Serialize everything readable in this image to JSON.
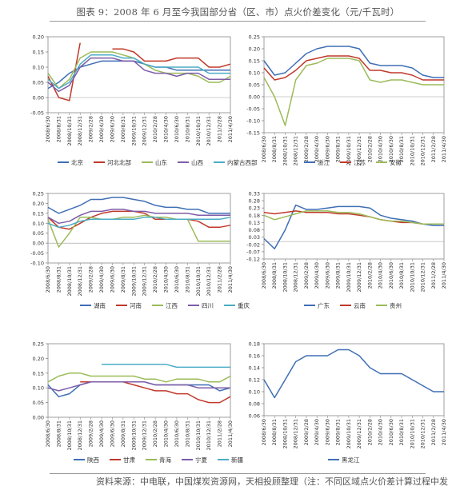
{
  "page": {
    "title": "图表 9：2008 年 6 月至今我国部分省（区、市）点火价差变化（元/千瓦时）",
    "source": "资料来源：中电联，中国煤炭资源网，天相投顾整理（注：不同区域点火价差计算过程中发电用煤耗热差异，以全国平均水平计算，计算过程采用区域接内用煤热值与标"
  },
  "chart_data": [
    {
      "type": "line",
      "x_labels": [
        "2008/6/30",
        "2008/8/31",
        "2008/10/31",
        "2008/12/31",
        "2009/2/28",
        "2009/4/30",
        "2009/6/30",
        "2009/8/31",
        "2009/10/31",
        "2009/12/31",
        "2010/2/28",
        "2010/4/30",
        "2010/6/30",
        "2010/8/31",
        "2010/10/31",
        "2010/12/31",
        "2011/2/28",
        "2011/4/30"
      ],
      "y_ticks": [
        "0.20",
        "0.15",
        "0.10",
        "0.05",
        "0.00",
        "-0.05"
      ],
      "ylim": [
        -0.05,
        0.2
      ],
      "legend_position": "bottom",
      "series": [
        {
          "name": "北京",
          "color": "#3f6fb5",
          "values": [
            0.03,
            0.05,
            0.08,
            0.1,
            0.11,
            0.12,
            0.12,
            0.12,
            0.12,
            0.11,
            0.1,
            0.1,
            0.09,
            0.09,
            0.09,
            0.09,
            0.09,
            0.09
          ]
        },
        {
          "name": "河北北部",
          "color": "#c0392b",
          "values": [
            0.07,
            0.0,
            -0.01,
            0.18,
            null,
            null,
            0.16,
            0.16,
            0.15,
            0.12,
            0.12,
            0.12,
            0.13,
            0.13,
            0.13,
            0.1,
            0.1,
            0.11
          ]
        },
        {
          "name": "山东",
          "color": "#9bbb59",
          "values": [
            0.08,
            0.03,
            0.06,
            0.13,
            0.15,
            0.15,
            0.15,
            0.14,
            0.13,
            0.11,
            0.09,
            0.08,
            0.08,
            0.08,
            0.07,
            0.05,
            0.05,
            0.07
          ]
        },
        {
          "name": "山西",
          "color": "#7e5ca8",
          "values": [
            0.05,
            0.02,
            0.04,
            0.1,
            0.13,
            0.13,
            0.13,
            0.12,
            0.12,
            0.09,
            0.08,
            0.08,
            0.07,
            0.08,
            0.08,
            0.06,
            0.06,
            0.06
          ]
        },
        {
          "name": "内蒙古西部",
          "color": "#4bacc6",
          "values": [
            0.06,
            0.03,
            0.05,
            0.11,
            0.14,
            0.14,
            0.14,
            0.13,
            0.13,
            0.11,
            0.1,
            0.1,
            0.1,
            0.1,
            0.1,
            0.08,
            0.08,
            0.08
          ]
        }
      ]
    },
    {
      "type": "line",
      "x_labels": [
        "2008/6/30",
        "2008/8/31",
        "2008/10/31",
        "2008/12/31",
        "2009/2/28",
        "2009/4/30",
        "2009/6/30",
        "2009/8/31",
        "2009/10/31",
        "2009/12/31",
        "2010/2/28",
        "2010/4/30",
        "2010/6/30",
        "2010/8/31",
        "2010/10/31",
        "2010/12/31",
        "2011/2/28",
        "2011/4/30"
      ],
      "y_ticks": [
        "0.25",
        "0.20",
        "0.15",
        "0.10",
        "0.05",
        "0.00",
        "-0.05",
        "-0.10",
        "-0.15"
      ],
      "ylim": [
        -0.15,
        0.25
      ],
      "legend_position": "bottom",
      "series": [
        {
          "name": "浙江",
          "color": "#3f6fb5",
          "values": [
            0.15,
            0.09,
            0.1,
            0.14,
            0.18,
            0.2,
            0.21,
            0.21,
            0.21,
            0.2,
            0.14,
            0.13,
            0.13,
            0.13,
            0.12,
            0.09,
            0.08,
            0.08
          ]
        },
        {
          "name": "江苏",
          "color": "#c0392b",
          "values": [
            0.12,
            0.07,
            0.08,
            0.11,
            0.15,
            0.16,
            0.17,
            0.17,
            0.17,
            0.16,
            0.11,
            0.11,
            0.1,
            0.1,
            0.09,
            0.07,
            0.07,
            0.07
          ]
        },
        {
          "name": "安徽",
          "color": "#9bbb59",
          "values": [
            0.08,
            0.0,
            -0.12,
            0.07,
            0.13,
            0.14,
            0.16,
            0.16,
            0.16,
            0.15,
            0.07,
            0.06,
            0.07,
            0.07,
            0.06,
            0.05,
            0.05,
            0.05
          ]
        }
      ]
    },
    {
      "type": "line",
      "x_labels": [
        "2008/6/30",
        "2008/8/31",
        "2008/10/31",
        "2008/12/31",
        "2009/2/28",
        "2009/4/30",
        "2009/6/30",
        "2009/8/31",
        "2009/10/31",
        "2009/12/31",
        "2010/2/28",
        "2010/4/30",
        "2010/6/30",
        "2010/8/31",
        "2010/10/31",
        "2010/12/31",
        "2011/2/28",
        "2011/4/30"
      ],
      "y_ticks": [
        "0.25",
        "0.20",
        "0.15",
        "0.10",
        "0.05",
        "0.00",
        "-0.05",
        "-0.10"
      ],
      "ylim": [
        -0.1,
        0.25
      ],
      "legend_position": "bottom",
      "series": [
        {
          "name": "湖南",
          "color": "#3f6fb5",
          "values": [
            0.18,
            0.15,
            0.17,
            0.19,
            0.22,
            0.22,
            0.23,
            0.23,
            0.22,
            0.21,
            0.19,
            0.18,
            0.18,
            0.17,
            0.17,
            0.15,
            0.15,
            0.15
          ]
        },
        {
          "name": "河南",
          "color": "#c0392b",
          "values": [
            0.13,
            0.08,
            0.07,
            0.1,
            0.13,
            0.15,
            0.16,
            0.16,
            0.16,
            0.15,
            0.12,
            0.12,
            0.12,
            0.12,
            0.11,
            0.08,
            0.08,
            0.09
          ]
        },
        {
          "name": "江西",
          "color": "#9bbb59",
          "values": [
            0.12,
            -0.02,
            0.05,
            0.13,
            0.13,
            0.12,
            0.12,
            0.13,
            0.13,
            0.14,
            0.13,
            0.13,
            0.12,
            0.12,
            0.01,
            0.01,
            0.01,
            0.01
          ]
        },
        {
          "name": "四川",
          "color": "#7e5ca8",
          "values": [
            0.13,
            0.1,
            0.11,
            0.14,
            0.16,
            0.16,
            0.17,
            0.17,
            0.16,
            0.16,
            0.15,
            0.15,
            0.15,
            0.15,
            0.14,
            0.14,
            0.14,
            0.14
          ]
        },
        {
          "name": "重庆",
          "color": "#4bacc6",
          "values": [
            0.1,
            0.08,
            0.09,
            0.11,
            0.12,
            0.12,
            0.12,
            0.12,
            0.12,
            0.13,
            0.13,
            0.12,
            0.12,
            0.12,
            0.12,
            0.12,
            0.12,
            0.13
          ]
        }
      ]
    },
    {
      "type": "line",
      "x_labels": [
        "2008/6/30",
        "2008/8/31",
        "2008/10/31",
        "2008/12/31",
        "2009/2/28",
        "2009/4/30",
        "2009/6/30",
        "2009/8/31",
        "2009/10/31",
        "2009/12/31",
        "2010/2/28",
        "2010/4/30",
        "2010/6/30",
        "2010/8/31",
        "2010/10/31",
        "2010/12/31",
        "2011/2/28",
        "2011/4/30"
      ],
      "y_ticks": [
        "0.33",
        "0.28",
        "0.23",
        "0.18",
        "0.13",
        "0.08",
        "0.03",
        "-0.02",
        "-0.07",
        "-0.12"
      ],
      "ylim": [
        -0.12,
        0.33
      ],
      "legend_position": "bottom",
      "series": [
        {
          "name": "广东",
          "color": "#3f6fb5",
          "values": [
            0.02,
            -0.05,
            0.08,
            0.25,
            0.22,
            0.22,
            0.23,
            0.24,
            0.24,
            0.24,
            0.23,
            0.18,
            0.16,
            0.15,
            0.14,
            0.12,
            0.11,
            0.11
          ]
        },
        {
          "name": "云南",
          "color": "#c0392b",
          "values": [
            0.2,
            0.19,
            0.2,
            0.21,
            0.2,
            0.2,
            0.2,
            0.19,
            0.19,
            0.18,
            0.17,
            0.15,
            0.14,
            0.13,
            0.13,
            0.12,
            0.12,
            0.12
          ]
        },
        {
          "name": "贵州",
          "color": "#9bbb59",
          "values": [
            0.18,
            0.15,
            0.17,
            0.19,
            0.21,
            0.21,
            0.21,
            0.2,
            0.2,
            0.19,
            0.17,
            0.15,
            0.14,
            0.14,
            0.13,
            0.12,
            0.12,
            0.12
          ]
        }
      ]
    },
    {
      "type": "line",
      "x_labels": [
        "2008/6/30",
        "2008/8/31",
        "2008/10/31",
        "2008/12/31",
        "2009/2/28",
        "2009/4/30",
        "2009/6/30",
        "2009/8/31",
        "2009/10/31",
        "2009/12/31",
        "2010/2/28",
        "2010/4/30",
        "2010/6/30",
        "2010/8/31",
        "2010/10/31",
        "2010/12/31",
        "2011/2/28",
        "2011/4/30"
      ],
      "y_ticks": [
        "0.25",
        "0.20",
        "0.15",
        "0.10",
        "0.05",
        "0.00"
      ],
      "ylim": [
        0,
        0.25
      ],
      "legend_position": "bottom",
      "series": [
        {
          "name": "陕西",
          "color": "#3f6fb5",
          "values": [
            0.11,
            0.07,
            0.08,
            0.11,
            0.12,
            0.12,
            0.12,
            0.12,
            0.12,
            0.12,
            0.11,
            0.11,
            0.11,
            0.11,
            0.11,
            0.11,
            0.09,
            0.1
          ]
        },
        {
          "name": "甘肃",
          "color": "#c0392b",
          "values": [
            null,
            null,
            null,
            0.12,
            0.12,
            0.12,
            0.12,
            0.12,
            0.11,
            0.1,
            0.09,
            0.09,
            0.08,
            0.08,
            0.06,
            0.05,
            0.05,
            0.07
          ]
        },
        {
          "name": "青海",
          "color": "#9bbb59",
          "values": [
            0.12,
            0.14,
            0.15,
            0.15,
            0.14,
            0.14,
            0.14,
            0.14,
            0.14,
            0.13,
            0.13,
            0.12,
            0.13,
            0.13,
            0.13,
            0.12,
            0.12,
            0.14
          ]
        },
        {
          "name": "宁夏",
          "color": "#7e5ca8",
          "values": [
            0.1,
            0.09,
            0.1,
            0.11,
            0.12,
            0.12,
            0.12,
            0.12,
            0.12,
            0.12,
            0.11,
            0.11,
            0.11,
            0.11,
            0.1,
            0.1,
            0.1,
            0.1
          ]
        },
        {
          "name": "新疆",
          "color": "#4bacc6",
          "values": [
            null,
            null,
            null,
            null,
            null,
            0.18,
            0.18,
            0.18,
            0.18,
            0.18,
            0.18,
            0.18,
            0.17,
            0.17,
            0.17,
            0.17,
            0.17,
            0.17
          ]
        }
      ]
    },
    {
      "type": "line",
      "x_labels": [
        "2008/6/30",
        "2008/8/31",
        "2008/10/31",
        "2008/12/31",
        "2009/2/28",
        "2009/4/30",
        "2009/6/30",
        "2009/8/31",
        "2009/10/31",
        "2009/12/31",
        "2010/2/28",
        "2010/4/30",
        "2010/6/30",
        "2010/8/31",
        "2010/10/31",
        "2010/12/31",
        "2011/2/28",
        "2011/4/30"
      ],
      "y_ticks": [
        "0.18",
        "0.16",
        "0.14",
        "0.12",
        "0.10",
        "0.08",
        "0.06"
      ],
      "ylim": [
        0.06,
        0.18
      ],
      "legend_position": "bottom",
      "series": [
        {
          "name": "黑龙江",
          "color": "#3f6fb5",
          "values": [
            0.12,
            0.09,
            0.12,
            0.15,
            0.16,
            0.16,
            0.16,
            0.17,
            0.17,
            0.16,
            0.14,
            0.13,
            0.13,
            0.13,
            0.12,
            0.11,
            0.1,
            0.1
          ]
        }
      ]
    }
  ]
}
